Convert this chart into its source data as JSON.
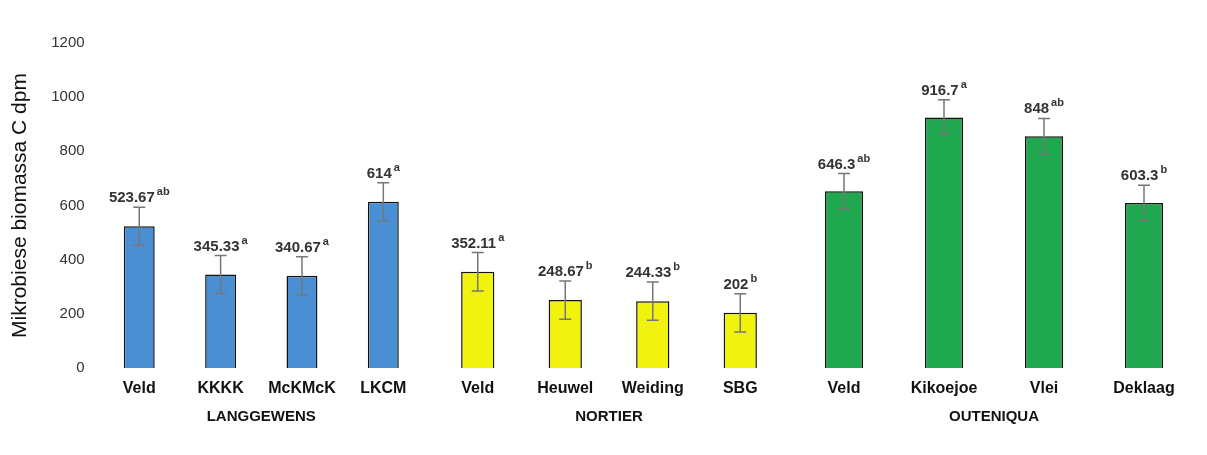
{
  "chart_data": [
    {
      "type": "bar",
      "ylabel": "Mikrobiese biomassa C dpm",
      "xlabel": "LANGGEWENS",
      "categories": [
        "Veld",
        "KKKK",
        "McKMcK",
        "LKCM"
      ],
      "values": [
        523.67,
        345.33,
        340.67,
        614
      ],
      "color": "#4a8fd4",
      "errors": [
        70,
        70,
        70,
        70
      ],
      "value_labels": [
        "523.67$^{ab}$",
        "345.33$^{a}$",
        "340.67$^{a}$",
        "614$^{a}$"
      ],
      "ylim": [
        0,
        1200
      ],
      "yticks": [
        0,
        200,
        400,
        600,
        800,
        1000,
        1200
      ]
    },
    {
      "type": "bar",
      "xlabel": "NORTIER",
      "categories": [
        "Veld",
        "Heuwel",
        "Weiding",
        "SBG"
      ],
      "values": [
        352.11,
        248.67,
        244.33,
        202
      ],
      "color": "#f2f20f",
      "errors": [
        70,
        70,
        70,
        70
      ],
      "value_labels": [
        "352.11$^{a}$",
        "248.67$^{b}$",
        "244.33$^{b}$",
        "202$^{b}$"
      ],
      "ylim": [
        0,
        1200
      ],
      "yticks": [
        0,
        200,
        400,
        600,
        800,
        1000,
        1200
      ],
      "tick_labels": "x"
    },
    {
      "type": "bar",
      "xlabel": "OUTENIQUA",
      "categories": [
        "Veld",
        "Kikoejoe",
        "Vlei",
        "Deklaag"
      ],
      "values": [
        646.3,
        916.7,
        848,
        603.3
      ],
      "color": "#1fa84f",
      "errors": [
        65,
        65,
        65,
        65
      ],
      "value_labels": [
        "646.3$^{ab}$",
        "916.7$^{a}$",
        "848$^{ab}$",
        "603.3$^{b}$"
      ],
      "ylim": [
        0,
        1200
      ],
      "yticks": [
        0,
        200,
        400,
        600,
        800,
        1000,
        1200
      ],
      "tick_labels": "x"
    }
  ]
}
